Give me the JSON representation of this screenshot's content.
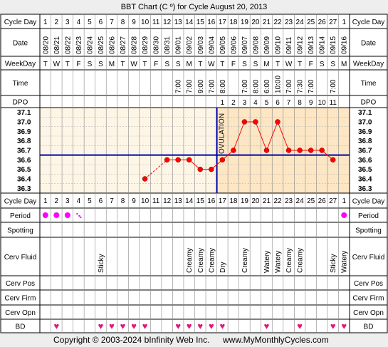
{
  "title": "BBT Chart (C º) for Cycle August 20, 2013",
  "footer": {
    "copyright": "Copyright © 2003-2024 bInfinity Web Inc.",
    "site": "www.MyMonthlyCycles.com"
  },
  "row_labels": {
    "cycle_day": "Cycle Day",
    "date": "Date",
    "weekday": "WeekDay",
    "time": "Time",
    "dpo": "DPO",
    "period": "Period",
    "spotting": "Spotting",
    "cerv_fluid": "Cerv Fluid",
    "cerv_pos": "Cerv Pos",
    "cerv_firm": "Cerv Firm",
    "cerv_opn": "Cerv Opn",
    "bd": "BD"
  },
  "ovulation_label": "OVULATION",
  "colors": {
    "temp_line": "#ff0000",
    "coverline": "#0000aa",
    "ovulation_line": "#0000aa",
    "post_ovulation_bg": "#fde6c4",
    "pre_ovulation_bg": "#fdf6e6",
    "period_dot": "#ff00ff",
    "bd_heart": "#e0187a"
  },
  "icons": {
    "period": "period-dot-icon",
    "bd": "heart-icon"
  },
  "chart_data": {
    "type": "line",
    "title": "BBT Chart (C º) for Cycle August 20, 2013",
    "x_cycle_days": [
      1,
      2,
      3,
      4,
      5,
      6,
      7,
      8,
      9,
      10,
      11,
      12,
      13,
      14,
      15,
      16,
      17,
      18,
      19,
      20,
      21,
      22,
      23,
      24,
      25,
      26,
      27,
      1
    ],
    "dates": [
      "08/20",
      "08/21",
      "08/22",
      "08/23",
      "08/24",
      "08/25",
      "08/26",
      "08/27",
      "08/28",
      "08/29",
      "08/30",
      "08/31",
      "09/01",
      "09/02",
      "09/03",
      "09/04",
      "09/05",
      "09/06",
      "09/07",
      "09/08",
      "09/09",
      "09/10",
      "09/11",
      "09/12",
      "09/13",
      "09/14",
      "09/15",
      "09/16"
    ],
    "weekdays": [
      "T",
      "W",
      "T",
      "F",
      "S",
      "S",
      "M",
      "T",
      "W",
      "T",
      "F",
      "S",
      "S",
      "M",
      "T",
      "W",
      "T",
      "F",
      "S",
      "S",
      "M",
      "T",
      "W",
      "T",
      "F",
      "S",
      "S",
      "M"
    ],
    "times": [
      "",
      "",
      "",
      "",
      "",
      "",
      "",
      "",
      "",
      "",
      "",
      "",
      "7:00",
      "7:00",
      "9:00",
      "7:00",
      "8:00",
      "",
      "7:00",
      "8:00",
      "6:00",
      "10:00",
      "7:00",
      "7:30",
      "7:00",
      "",
      "7:00",
      ""
    ],
    "dpo": [
      "",
      "",
      "",
      "",
      "",
      "",
      "",
      "",
      "",
      "",
      "",
      "",
      "",
      "",
      "",
      "",
      "1",
      "2",
      "3",
      "4",
      "5",
      "6",
      "7",
      "8",
      "9",
      "10",
      "11",
      ""
    ],
    "y_ticks": [
      "37.1",
      "37.0",
      "36.9",
      "36.8",
      "36.7",
      "36.6",
      "36.5",
      "36.4",
      "36.3"
    ],
    "ylim": [
      36.3,
      37.1
    ],
    "temperatures": [
      null,
      null,
      null,
      null,
      null,
      null,
      null,
      null,
      null,
      36.4,
      null,
      36.6,
      36.6,
      36.6,
      36.5,
      36.5,
      36.6,
      36.7,
      37.0,
      37.0,
      36.7,
      37.0,
      36.7,
      36.7,
      36.7,
      36.7,
      36.6,
      null
    ],
    "coverline": 36.65,
    "ovulation_after_day": 16,
    "period": [
      "heavy",
      "heavy",
      "heavy",
      "spotting",
      "",
      "",
      "",
      "",
      "",
      "",
      "",
      "",
      "",
      "",
      "",
      "",
      "",
      "",
      "",
      "",
      "",
      "",
      "",
      "",
      "",
      "",
      "",
      "heavy"
    ],
    "cerv_fluid": [
      "",
      "",
      "",
      "",
      "",
      "Sticky",
      "",
      "",
      "",
      "",
      "",
      "",
      "",
      "Creamy",
      "Creamy",
      "Creamy",
      "Dry",
      "",
      "Creamy",
      "",
      "Watery",
      "Watery",
      "Creamy",
      "Creamy",
      "",
      "",
      "Sticky",
      "Watery"
    ],
    "bd": [
      false,
      true,
      false,
      false,
      false,
      true,
      true,
      true,
      true,
      true,
      false,
      false,
      true,
      true,
      true,
      true,
      true,
      false,
      false,
      false,
      true,
      false,
      false,
      true,
      false,
      false,
      true,
      true
    ]
  }
}
